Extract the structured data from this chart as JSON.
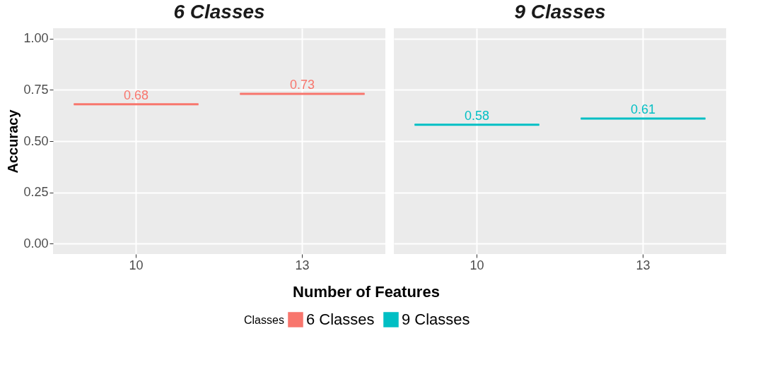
{
  "chart_data": [
    {
      "type": "box",
      "title": "6 Classes",
      "ylabel": "Accuracy",
      "xlabel": "Number of Features",
      "legend_title": "Classes",
      "legend": "bottom",
      "categories": [
        "10",
        "13"
      ],
      "series": [
        {
          "name": "6 Classes",
          "color": "#f8766d",
          "boxes": [
            {
              "low": 0.68,
              "q1": 0.68,
              "median": 0.68,
              "q3": 0.68,
              "high": 0.68
            },
            {
              "low": 0.73,
              "q1": 0.73,
              "median": 0.73,
              "q3": 0.73,
              "high": 0.73
            }
          ],
          "value_labels": [
            "0.68",
            "0.73"
          ]
        }
      ],
      "ylim": [
        -0.05,
        1.05
      ],
      "yticks": [
        {
          "value": 0,
          "label": "0.00"
        },
        {
          "value": 0.25,
          "label": "0.25"
        },
        {
          "value": 0.5,
          "label": "0.50"
        },
        {
          "value": 0.75,
          "label": "0.75"
        },
        {
          "value": 1,
          "label": "1.00"
        }
      ],
      "grid": true
    },
    {
      "type": "box",
      "title": "9 Classes",
      "categories": [
        "10",
        "13"
      ],
      "series": [
        {
          "name": "9 Classes",
          "color": "#00bfc4",
          "boxes": [
            {
              "low": 0.58,
              "q1": 0.58,
              "median": 0.58,
              "q3": 0.58,
              "high": 0.58
            },
            {
              "low": 0.61,
              "q1": 0.61,
              "median": 0.61,
              "q3": 0.61,
              "high": 0.61
            }
          ],
          "value_labels": [
            "0.58",
            "0.61"
          ]
        }
      ],
      "ylim": [
        -0.05,
        1.05
      ],
      "yticks": [
        {
          "value": 0,
          "label": null
        },
        {
          "value": 0.25,
          "label": null
        },
        {
          "value": 0.5,
          "label": null
        },
        {
          "value": 0.75,
          "label": null
        },
        {
          "value": 1,
          "label": null
        }
      ],
      "grid": true,
      "tick_labels": "x"
    }
  ]
}
